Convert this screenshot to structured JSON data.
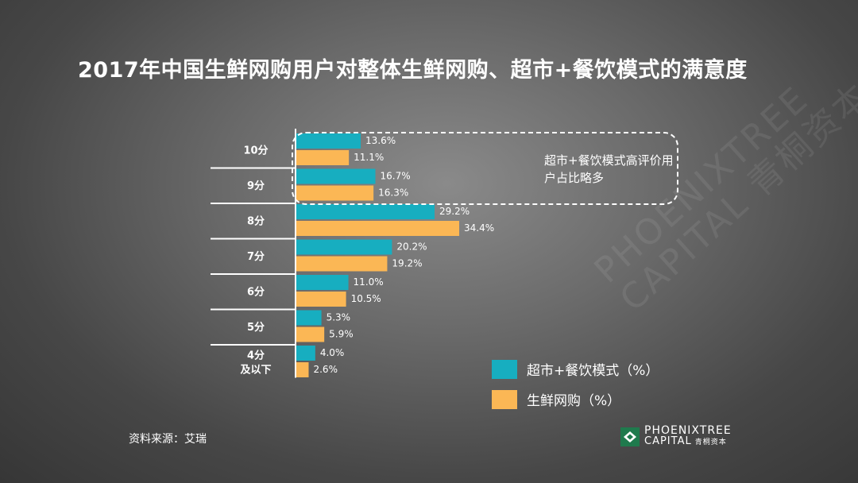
{
  "title": "2017年中国生鲜网购用户对整体生鲜网购、超市+餐饮模式的满意度",
  "callout": "超市+餐饮模式高评价用户占比略多",
  "source": "资料来源：艾瑞",
  "logo": {
    "line1": "PHOENIXTREE",
    "line2": "CAPITAL",
    "line2_cn": "青桐资本",
    "mark_icon": "phoenixtree-logo-icon"
  },
  "watermark": {
    "line1": "PHOENIXTREE",
    "line2": "CAPITAL 青桐资本"
  },
  "colors": {
    "series1": "#17aec0",
    "series2": "#fbb755"
  },
  "chart_data": {
    "type": "bar",
    "orientation": "horizontal",
    "categories": [
      "10分",
      "9分",
      "8分",
      "7分",
      "6分",
      "5分",
      "4分\n及以下"
    ],
    "series": [
      {
        "name": "超市+餐饮模式（%）",
        "values": [
          13.6,
          16.7,
          29.2,
          20.2,
          11.0,
          5.3,
          4.0
        ]
      },
      {
        "name": "生鲜网购（%）",
        "values": [
          11.1,
          16.3,
          34.4,
          19.2,
          10.5,
          5.9,
          2.6
        ]
      }
    ],
    "value_labels": [
      [
        "13.6%",
        "16.7%",
        "29.2%",
        "20.2%",
        "11.0%",
        "5.3%",
        "4.0%"
      ],
      [
        "11.1%",
        "16.3%",
        "34.4%",
        "19.2%",
        "10.5%",
        "5.9%",
        "2.6%"
      ]
    ],
    "legend_position": "bottom-right",
    "grid": false
  }
}
